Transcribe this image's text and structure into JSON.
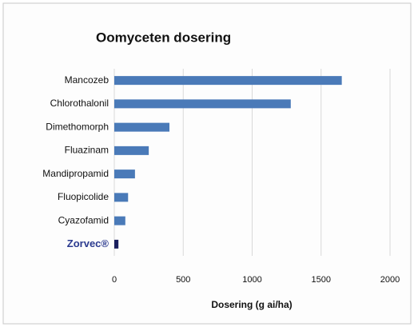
{
  "chart_data": {
    "type": "bar",
    "orientation": "horizontal",
    "title": "Oomyceten dosering",
    "x_label": "Dosering (g ai/ha)",
    "categories": [
      "Mancozeb",
      "Chlorothalonil",
      "Dimethomorph",
      "Fluazinam",
      "Mandipropamid",
      "Fluopicolide",
      "Cyazofamid",
      "Zorvec®"
    ],
    "values": [
      1650,
      1280,
      400,
      250,
      150,
      100,
      80,
      30
    ],
    "color": "#4a7ab8",
    "colors": [
      "#4a7ab8",
      "#4a7ab8",
      "#4a7ab8",
      "#4a7ab8",
      "#4a7ab8",
      "#4a7ab8",
      "#4a7ab8",
      "#1a1f5e"
    ],
    "xlim": [
      0,
      2000
    ],
    "xticks": [
      0,
      500,
      1000,
      1500,
      2000
    ],
    "grid": true
  }
}
